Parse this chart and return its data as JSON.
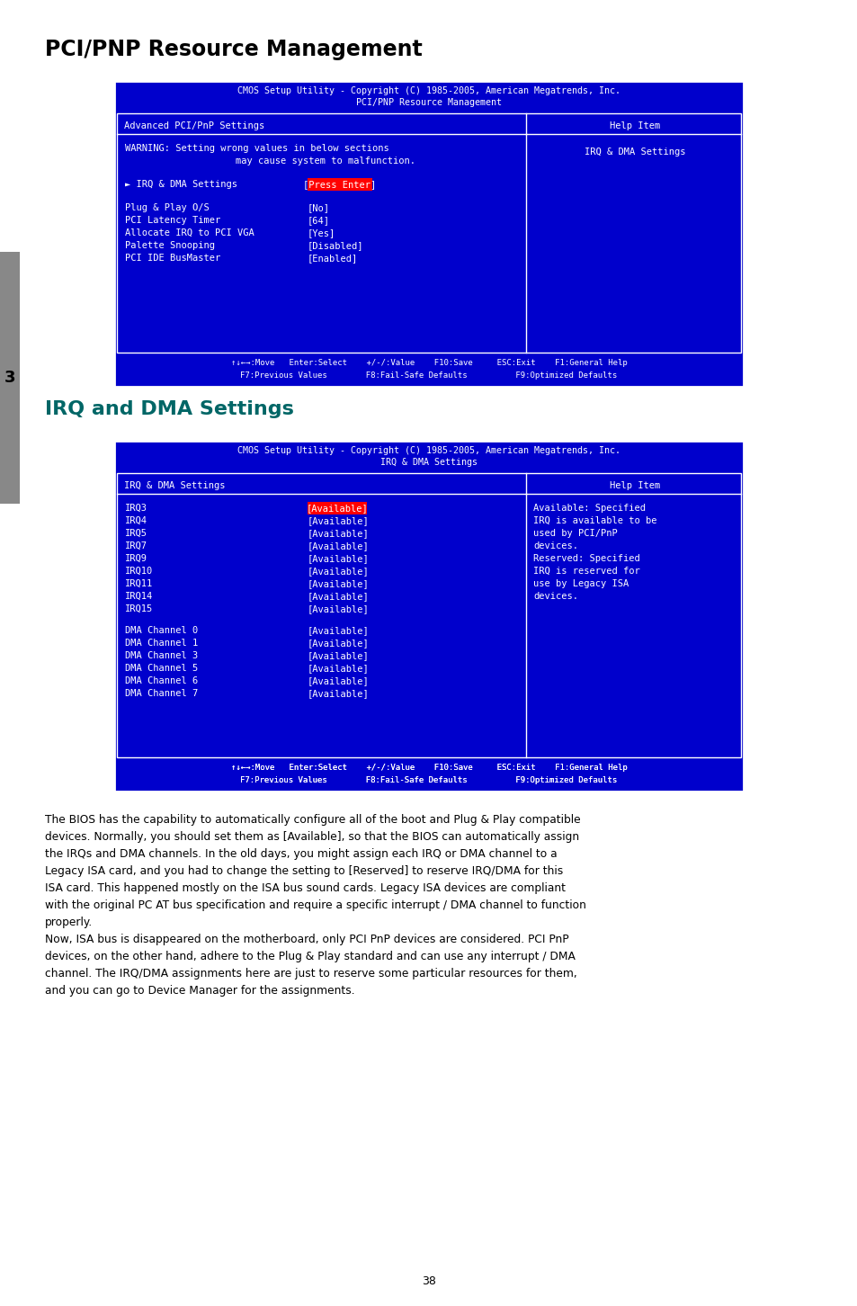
{
  "title1": "PCI/PNP Resource Management",
  "title2": "IRQ and DMA Settings",
  "bg_color": "#ffffff",
  "blue": "#0000CC",
  "white": "#ffffff",
  "red": "#FF0000",
  "teal": "#006666",
  "bios1_header1": "CMOS Setup Utility - Copyright (C) 1985-2005, American Megatrends, Inc.",
  "bios1_header2": "PCI/PNP Resource Management",
  "bios1_col1": "Advanced PCI/PnP Settings",
  "bios1_col2": "Help Item",
  "bios1_warning1": "WARNING: Setting wrong values in below sections",
  "bios1_warning2": "may cause system to malfunction.",
  "bios1_help": "IRQ & DMA Settings",
  "bios1_irq_label": "► IRQ & DMA Settings",
  "bios1_irq_value": "[Press Enter]",
  "bios1_items": [
    [
      "Plug & Play O/S",
      "[No]"
    ],
    [
      "PCI Latency Timer",
      "[64]"
    ],
    [
      "Allocate IRQ to PCI VGA",
      "[Yes]"
    ],
    [
      "Palette Snooping",
      "[Disabled]"
    ],
    [
      "PCI IDE BusMaster",
      "[Enabled]"
    ]
  ],
  "bios1_footer1": "↑↓←→:Move   Enter:Select    +/-/:Value    F10:Save     ESC:Exit    F1:General Help",
  "bios1_footer2": "F7:Previous Values        F8:Fail-Safe Defaults          F9:Optimized Defaults",
  "bios2_header1": "CMOS Setup Utility - Copyright (C) 1985-2005, American Megatrends, Inc.",
  "bios2_header2": "IRQ & DMA Settings",
  "bios2_col1": "IRQ & DMA Settings",
  "bios2_col2": "Help Item",
  "bios2_irq_items": [
    [
      "IRQ3",
      "[Available]"
    ],
    [
      "IRQ4",
      "[Available]"
    ],
    [
      "IRQ5",
      "[Available]"
    ],
    [
      "IRQ7",
      "[Available]"
    ],
    [
      "IRQ9",
      "[Available]"
    ],
    [
      "IRQ10",
      "[Available]"
    ],
    [
      "IRQ11",
      "[Available]"
    ],
    [
      "IRQ14",
      "[Available]"
    ],
    [
      "IRQ15",
      "[Available]"
    ]
  ],
  "bios2_dma_items": [
    [
      "DMA Channel 0",
      "[Available]"
    ],
    [
      "DMA Channel 1",
      "[Available]"
    ],
    [
      "DMA Channel 3",
      "[Available]"
    ],
    [
      "DMA Channel 5",
      "[Available]"
    ],
    [
      "DMA Channel 6",
      "[Available]"
    ],
    [
      "DMA Channel 7",
      "[Available]"
    ]
  ],
  "bios2_help_text": [
    "Available: Specified",
    "IRQ is available to be",
    "used by PCI/PnP",
    "devices.",
    "Reserved: Specified",
    "IRQ is reserved for",
    "use by Legacy ISA",
    "devices."
  ],
  "bios2_footer1": "↑↓←→:Move   Enter:Select    +/-/:Value    F10:Save     ESC:Exit    F1:General Help",
  "bios2_footer2": "F7:Previous Values        F8:Fail-Safe Defaults          F9:Optimized Defaults",
  "body_text": [
    "The BIOS has the capability to automatically configure all of the boot and Plug & Play compatible",
    "devices. Normally, you should set them as [Available], so that the BIOS can automatically assign",
    "the IRQs and DMA channels. In the old days, you might assign each IRQ or DMA channel to a",
    "Legacy ISA card, and you had to change the setting to [Reserved] to reserve IRQ/DMA for this",
    "ISA card. This happened mostly on the ISA bus sound cards. Legacy ISA devices are compliant",
    "with the original PC AT bus specification and require a specific interrupt / DMA channel to function",
    "properly.",
    "Now, ISA bus is disappeared on the motherboard, only PCI PnP devices are considered. PCI PnP",
    "devices, on the other hand, adhere to the Plug & Play standard and can use any interrupt / DMA",
    "channel. The IRQ/DMA assignments here are just to reserve some particular resources for them,",
    "and you can go to Device Manager for the assignments."
  ],
  "page_number": "38"
}
